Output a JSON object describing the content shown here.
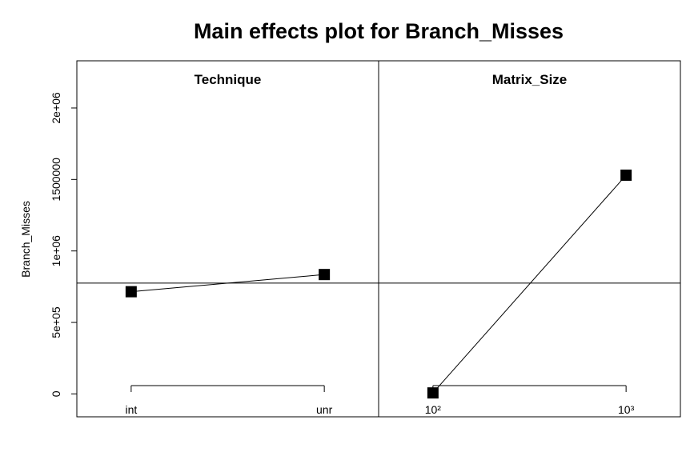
{
  "chart_data": {
    "type": "line",
    "title": "Main effects plot for Branch_Misses",
    "ylabel": "Branch_Misses",
    "ylim": [
      -160000,
      2330000
    ],
    "yticks": [
      {
        "value": 0,
        "label": "0"
      },
      {
        "value": 500000,
        "label": "5e+05"
      },
      {
        "value": 1000000,
        "label": "1e+06"
      },
      {
        "value": 1500000,
        "label": "1500000"
      },
      {
        "value": 2000000,
        "label": "2e+06"
      }
    ],
    "grand_mean": 775000,
    "colors": {
      "line": "#000000",
      "marker": "#000000"
    },
    "panels": [
      {
        "name": "Technique",
        "levels": [
          "int",
          "unr"
        ],
        "values": [
          715000,
          835000
        ]
      },
      {
        "name": "Matrix_Size",
        "levels": [
          "10²",
          "10³"
        ],
        "values": [
          7000,
          1530000
        ]
      }
    ]
  }
}
